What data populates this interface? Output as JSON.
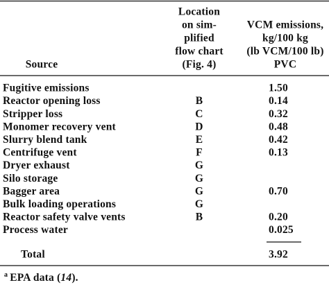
{
  "table": {
    "header": {
      "source": "Source",
      "location": [
        "Location",
        "on sim-",
        "plified",
        "flow chart",
        "(Fig. 4)"
      ],
      "emissions": [
        "VCM emissions,",
        "kg/100 kg",
        "(lb VCM/100 lb)",
        "PVC"
      ]
    },
    "rows": [
      [
        "Fugitive emissions",
        null,
        "1.50"
      ],
      [
        "Reactor opening loss",
        "B",
        "0.14"
      ],
      [
        "Stripper loss",
        "C",
        "0.32"
      ],
      [
        "Monomer recovery vent",
        "D",
        "0.48"
      ],
      [
        "Slurry blend tank",
        "E",
        "0.42"
      ],
      [
        "Centrifuge vent",
        "F",
        "0.13"
      ],
      [
        "Dryer exhaust",
        "G",
        null
      ],
      [
        "Silo storage",
        "G",
        null
      ],
      [
        "Bagger area",
        "G",
        "0.70"
      ],
      [
        "Bulk loading operations",
        "G",
        null
      ],
      [
        "Reactor safety valve vents",
        "B",
        "0.20"
      ],
      [
        "Process water",
        null,
        "0.025"
      ]
    ],
    "total": {
      "label": "Total",
      "value": "3.92"
    },
    "footnote": {
      "marker": "a",
      "text": "EPA data (",
      "ref": "14",
      "end": ")."
    }
  }
}
